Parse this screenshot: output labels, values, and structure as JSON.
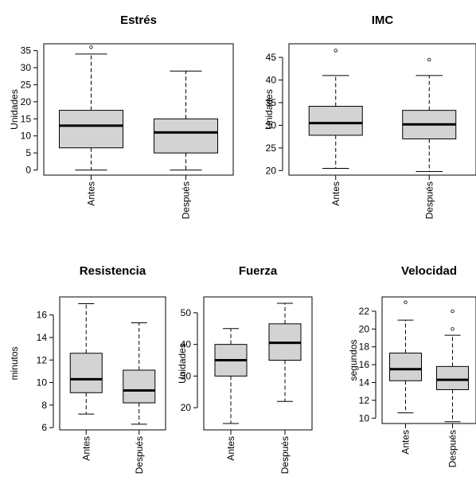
{
  "chart_data": [
    {
      "type": "boxplot",
      "title": "Estrés",
      "ylabel": "Unidades",
      "yticks": [
        0,
        5,
        10,
        15,
        20,
        25,
        30,
        35
      ],
      "ylim": [
        -1.5,
        37
      ],
      "categories": [
        "Antes",
        "Después"
      ],
      "boxes": [
        {
          "min": 0,
          "q1": 6.5,
          "median": 13,
          "q3": 17.5,
          "max": 34,
          "outliers": [
            36
          ]
        },
        {
          "min": 0,
          "q1": 5,
          "median": 11,
          "q3": 15,
          "max": 29,
          "outliers": []
        }
      ]
    },
    {
      "type": "boxplot",
      "title": "IMC",
      "ylabel": "Unidades",
      "yticks": [
        20,
        25,
        30,
        35,
        40,
        45
      ],
      "ylim": [
        19,
        48
      ],
      "categories": [
        "Antes",
        "Después"
      ],
      "boxes": [
        {
          "min": 20.5,
          "q1": 27.8,
          "median": 30.5,
          "q3": 34.2,
          "max": 41,
          "outliers": [
            46.5
          ]
        },
        {
          "min": 19.8,
          "q1": 27,
          "median": 30.2,
          "q3": 33.3,
          "max": 41,
          "outliers": [
            44.5
          ]
        }
      ]
    },
    {
      "type": "boxplot",
      "title": "Resistencia",
      "ylabel": "minutos",
      "yticks": [
        6,
        8,
        10,
        12,
        14,
        16
      ],
      "ylim": [
        5.8,
        17.6
      ],
      "categories": [
        "Antes",
        "Después"
      ],
      "boxes": [
        {
          "min": 7.2,
          "q1": 9.1,
          "median": 10.3,
          "q3": 12.6,
          "max": 17,
          "outliers": []
        },
        {
          "min": 6.3,
          "q1": 8.2,
          "median": 9.3,
          "q3": 11.1,
          "max": 15.3,
          "outliers": []
        }
      ]
    },
    {
      "type": "boxplot",
      "title": "Fuerza",
      "ylabel": "Unidades",
      "yticks": [
        20,
        30,
        40,
        50
      ],
      "ylim": [
        13,
        55
      ],
      "categories": [
        "Antes",
        "Después"
      ],
      "boxes": [
        {
          "min": 15,
          "q1": 30,
          "median": 35,
          "q3": 40,
          "max": 45,
          "outliers": []
        },
        {
          "min": 22,
          "q1": 35,
          "median": 40.5,
          "q3": 46.5,
          "max": 53,
          "outliers": []
        }
      ]
    },
    {
      "type": "boxplot",
      "title": "Velocidad",
      "ylabel": "segundos",
      "yticks": [
        10,
        12,
        14,
        16,
        18,
        20,
        22
      ],
      "ylim": [
        9.4,
        23.6
      ],
      "categories": [
        "Antes",
        "Después"
      ],
      "boxes": [
        {
          "min": 10.6,
          "q1": 14.2,
          "median": 15.5,
          "q3": 17.3,
          "max": 21,
          "outliers": [
            23
          ]
        },
        {
          "min": 9.6,
          "q1": 13.2,
          "median": 14.3,
          "q3": 15.8,
          "max": 19.3,
          "outliers": [
            20,
            22
          ]
        }
      ]
    }
  ]
}
